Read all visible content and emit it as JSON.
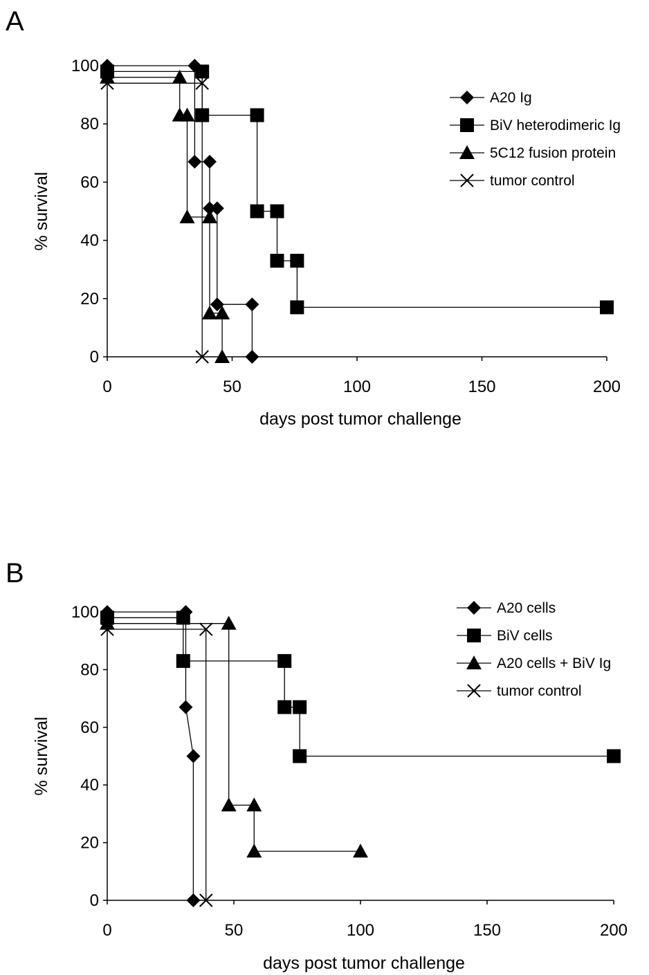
{
  "chart_data": [
    {
      "panel": "A",
      "type": "line",
      "step": true,
      "xlabel": "days post tumor challenge",
      "ylabel": "% survival",
      "xlim": [
        0,
        200
      ],
      "ylim": [
        0,
        100
      ],
      "xticks": [
        0,
        50,
        100,
        150,
        200
      ],
      "yticks": [
        0,
        20,
        40,
        60,
        80,
        100
      ],
      "legend_position": "top-right",
      "series": [
        {
          "name": "A20 Ig",
          "marker": "diamond",
          "x": [
            0,
            35,
            35,
            41,
            41,
            44,
            44,
            58,
            58
          ],
          "y": [
            100,
            100,
            67,
            67,
            51,
            51,
            18,
            18,
            0
          ]
        },
        {
          "name": "BiV heterodimeric Ig",
          "marker": "square",
          "x": [
            0,
            38,
            38,
            60,
            60,
            68,
            68,
            76,
            76,
            200
          ],
          "y": [
            98,
            98,
            83,
            83,
            50,
            50,
            33,
            33,
            17,
            17
          ]
        },
        {
          "name": "5C12 fusion protein",
          "marker": "triangle",
          "x": [
            0,
            29,
            29,
            32,
            32,
            41,
            41,
            46,
            46
          ],
          "y": [
            96,
            96,
            83,
            83,
            48,
            48,
            15,
            15,
            0
          ]
        },
        {
          "name": "tumor control",
          "marker": "x",
          "x": [
            0,
            38,
            38
          ],
          "y": [
            94,
            94,
            0
          ]
        }
      ]
    },
    {
      "panel": "B",
      "type": "line",
      "step": true,
      "xlabel": "days post tumor challenge",
      "ylabel": "% survival",
      "xlim": [
        0,
        200
      ],
      "ylim": [
        0,
        100
      ],
      "xticks": [
        0,
        50,
        100,
        150,
        200
      ],
      "yticks": [
        0,
        20,
        40,
        60,
        80,
        100
      ],
      "legend_position": "top-right",
      "series": [
        {
          "name": "A20 cells",
          "marker": "diamond",
          "x": [
            0,
            31,
            31,
            34,
            34
          ],
          "y": [
            100,
            100,
            67,
            50,
            0
          ]
        },
        {
          "name": "BiV cells",
          "marker": "square",
          "x": [
            0,
            30,
            30,
            70,
            70,
            76,
            76,
            200
          ],
          "y": [
            98,
            98,
            83,
            83,
            67,
            67,
            50,
            50
          ]
        },
        {
          "name": "A20 cells + BiV Ig",
          "marker": "triangle",
          "x": [
            0,
            48,
            48,
            58,
            58,
            100
          ],
          "y": [
            96,
            96,
            33,
            33,
            17,
            17
          ]
        },
        {
          "name": "tumor control",
          "marker": "x",
          "x": [
            0,
            39,
            39
          ],
          "y": [
            94,
            94,
            0
          ]
        }
      ]
    }
  ]
}
